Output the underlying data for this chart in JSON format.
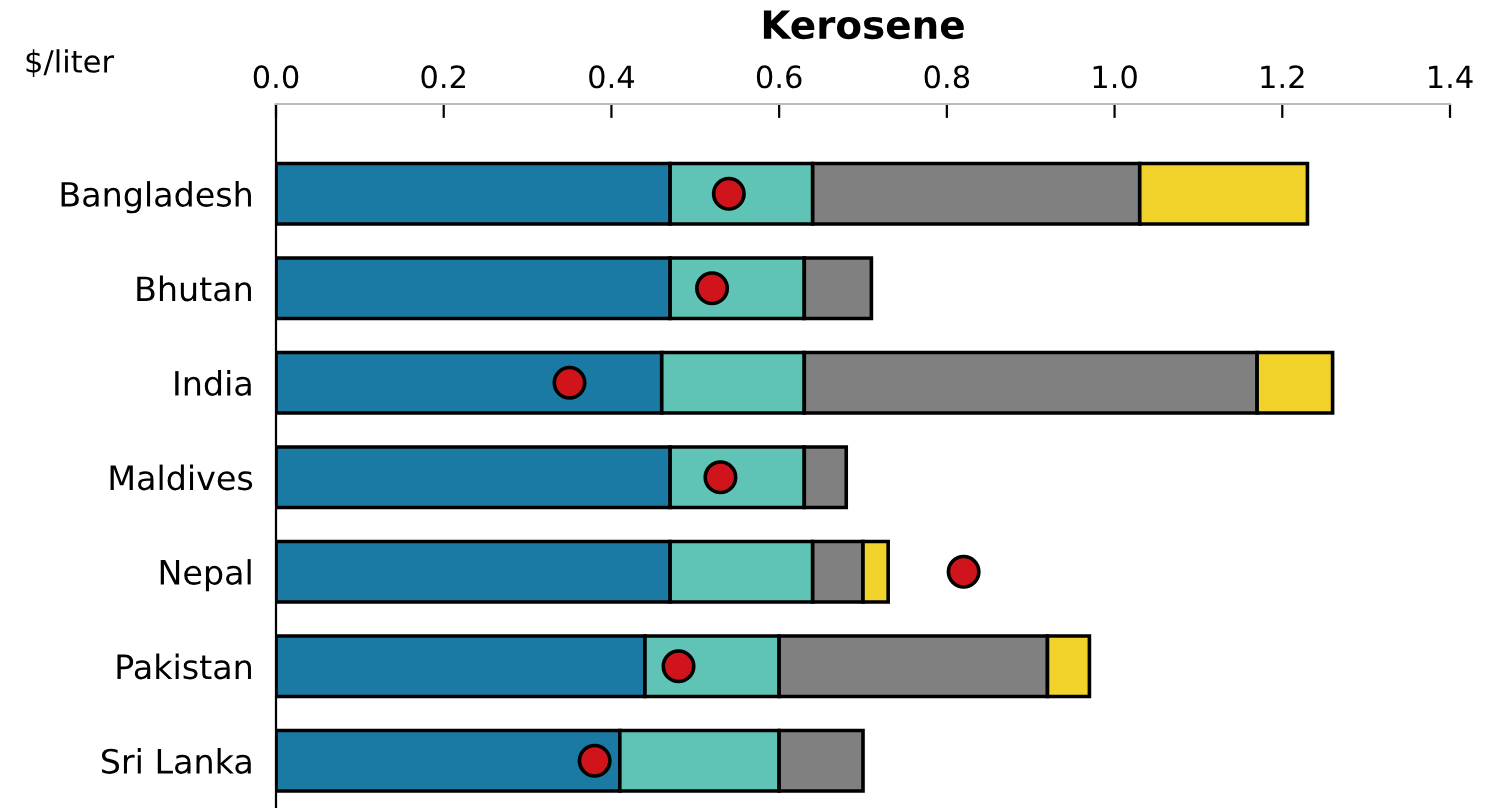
{
  "chart_data": {
    "type": "bar",
    "orientation": "horizontal",
    "stacked": true,
    "title": "Kerosene",
    "ylabel": "$/liter",
    "categories": [
      "Bangladesh",
      "Bhutan",
      "India",
      "Maldives",
      "Nepal",
      "Pakistan",
      "Sri Lanka"
    ],
    "xlim": [
      0,
      1.4
    ],
    "xticks": [
      {
        "value": 0,
        "label": "0.0"
      },
      0.2,
      0.4,
      0.6,
      0.8,
      {
        "value": 1,
        "label": "1.0"
      },
      1.2,
      1.4
    ],
    "grid": false,
    "series": [
      {
        "color": "#1a7aa3",
        "values": [
          0.47,
          0.47,
          0.46,
          0.47,
          0.47,
          0.44,
          0.41
        ]
      },
      {
        "color": "#5fc4b5",
        "values": [
          0.17,
          0.16,
          0.17,
          0.16,
          0.17,
          0.16,
          0.19
        ]
      },
      {
        "color": "#808080",
        "values": [
          0.39,
          0.08,
          0.54,
          0.05,
          0.06,
          0.32,
          0.1
        ]
      },
      {
        "color": "#f0d22b",
        "values": [
          0.2,
          null,
          0.09,
          null,
          0.03,
          0.05,
          null
        ]
      },
      {
        "type": "scatter",
        "color": "#d0141c",
        "marker": "circle",
        "x": [
          "Bangladesh",
          "Bhutan",
          "India",
          "Maldives",
          "Nepal",
          "Pakistan",
          "Sri Lanka"
        ],
        "values": [
          0.54,
          0.52,
          0.35,
          0.53,
          0.82,
          0.48,
          0.38
        ]
      }
    ]
  }
}
